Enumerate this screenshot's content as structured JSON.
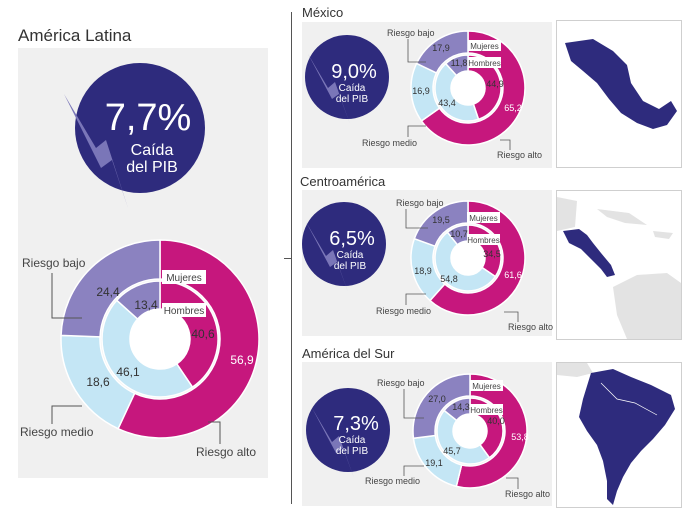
{
  "colors": {
    "riesgo_bajo": "#8b82c0",
    "riesgo_medio": "#c4e6f5",
    "riesgo_alto": "#c6177d",
    "circle": "#2e2b7d",
    "bolt": "#7a76b8",
    "map_fill": "#2e2b7d",
    "map_other": "#e3e3e3"
  },
  "labels": {
    "riesgo_bajo": "Riesgo bajo",
    "riesgo_medio": "Riesgo medio",
    "riesgo_alto": "Riesgo alto",
    "mujeres": "Mujeres",
    "hombres": "Hombres",
    "caida_line1": "Caída",
    "caida_line2": "del PIB"
  },
  "chart_data": [
    {
      "type": "pie",
      "region": "América Latina",
      "gdp_drop": "7,7%",
      "outer_ring": {
        "name": "Mujeres",
        "values": {
          "riesgo_bajo": "24,4",
          "riesgo_medio": "18,6",
          "riesgo_alto": "56,9"
        }
      },
      "inner_ring": {
        "name": "Hombres",
        "values": {
          "riesgo_bajo": "13,4",
          "riesgo_medio": "46,1",
          "riesgo_alto": "40,6"
        }
      }
    },
    {
      "type": "pie",
      "region": "México",
      "gdp_drop": "9,0%",
      "outer_ring": {
        "name": "Mujeres",
        "values": {
          "riesgo_bajo": "17,9",
          "riesgo_medio": "16,9",
          "riesgo_alto": "65,2"
        }
      },
      "inner_ring": {
        "name": "Hombres",
        "values": {
          "riesgo_bajo": "11,8",
          "riesgo_medio": "43,4",
          "riesgo_alto": "44,9"
        }
      }
    },
    {
      "type": "pie",
      "region": "Centroamérica",
      "gdp_drop": "6,5%",
      "outer_ring": {
        "name": "Mujeres",
        "values": {
          "riesgo_bajo": "19,5",
          "riesgo_medio": "18,9",
          "riesgo_alto": "61,6"
        }
      },
      "inner_ring": {
        "name": "Hombres",
        "values": {
          "riesgo_bajo": "10,7",
          "riesgo_medio": "54,8",
          "riesgo_alto": "34,5"
        }
      }
    },
    {
      "type": "pie",
      "region": "América del Sur",
      "gdp_drop": "7,3%",
      "outer_ring": {
        "name": "Mujeres",
        "values": {
          "riesgo_bajo": "27,0",
          "riesgo_medio": "19,1",
          "riesgo_alto": "53,8"
        }
      },
      "inner_ring": {
        "name": "Hombres",
        "values": {
          "riesgo_bajo": "14,3",
          "riesgo_medio": "45,7",
          "riesgo_alto": "40,0"
        }
      }
    }
  ]
}
